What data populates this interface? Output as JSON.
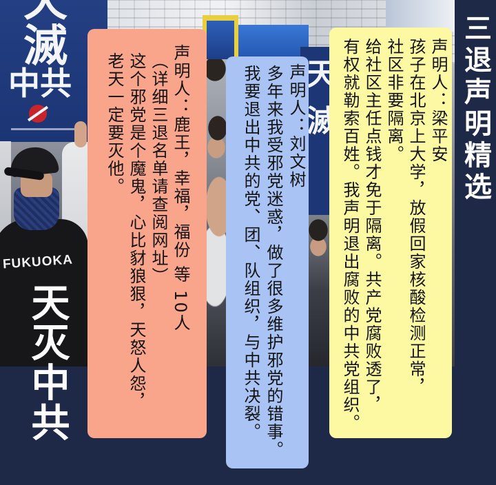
{
  "title": "三退声明精选",
  "slogan": "天灭中共",
  "colors": {
    "background": "#1e2847",
    "card_orange": "#f9a58b",
    "card_blue": "#a8c3f4",
    "card_yellow": "#fcf9a2",
    "text": "#141414",
    "title_text": "#ffffff"
  },
  "photo": {
    "banner_left": {
      "line1": "天滅",
      "line2": "中共"
    },
    "banner_right": {
      "text": "天滅"
    },
    "shirt_text": "FUKUOKA"
  },
  "statements": [
    {
      "card": "orange",
      "lines": [
        "声明人：鹿王，幸福，福份 等 10人",
        "（详细三退名单请查阅网址）",
        "这个邪党是个魔鬼，心比豺狼狠，天怒人怨，",
        "老天一定要灭他。"
      ]
    },
    {
      "card": "blue",
      "lines": [
        "声明人：刘文树",
        "多年来我受邪党迷惑，做了很多维护邪党的错事。",
        "我要退出中共的党、团、队组织，与中共决裂。"
      ]
    },
    {
      "card": "yellow",
      "lines": [
        "声明人：梁平安",
        "孩子在北京上大学，放假回家核酸检测正常，",
        "社区非要隔离。",
        "给社区主任点钱才免于隔离。共产党腐败透了，",
        "有权就勒索百姓。我声明退出腐败的中共党组织。"
      ]
    }
  ]
}
